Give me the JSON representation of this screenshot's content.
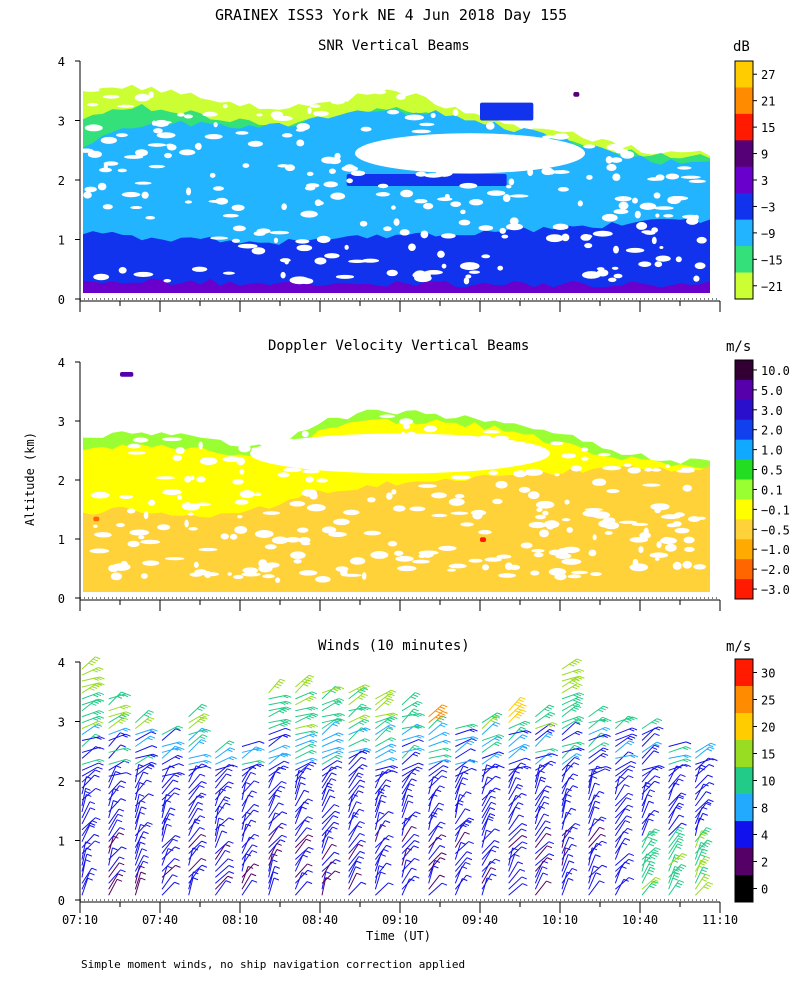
{
  "figure_title": "GRAINEX ISS3 York NE   4 Jun 2018 Day 155",
  "footnote": "Simple moment winds, no ship navigation correction applied",
  "shared_ylabel": "Altitude (km)",
  "shared_xlabel": "Time (UT)",
  "time_ticks": [
    "07:10",
    "07:40",
    "08:10",
    "08:40",
    "09:10",
    "09:40",
    "10:10",
    "10:40",
    "11:10"
  ],
  "altitude_ticks": [
    "0",
    "1",
    "2",
    "3",
    "4"
  ],
  "chart_data": [
    {
      "type": "heatmap",
      "title": "SNR Vertical Beams",
      "units": "dB",
      "xlim": [
        "07:10",
        "11:10"
      ],
      "ylim": [
        0,
        4
      ],
      "colorbar_labels": [
        "27",
        "21",
        "15",
        "9",
        "3",
        "−3",
        "−9",
        "−15",
        "−21"
      ],
      "colorbar_colors": [
        "#ffcc00",
        "#ff8c00",
        "#ff1a00",
        "#550077",
        "#6a00cc",
        "#1133ee",
        "#22b4ff",
        "#33e07a",
        "#ccff33"
      ],
      "layers": [
        {
          "label": "-21",
          "top": [
            3.55,
            3.6,
            3.45,
            3.3,
            3.2,
            3.25,
            3.5,
            3.4,
            3.1,
            2.9,
            2.8,
            2.6,
            2.45,
            2.45
          ]
        },
        {
          "label": "-15",
          "top": [
            3.05,
            3.25,
            3.15,
            3.0,
            2.9,
            3.0,
            3.2,
            3.15,
            2.95,
            2.8,
            2.7,
            2.5,
            2.4,
            2.4
          ]
        },
        {
          "label": "-9",
          "top": [
            2.6,
            2.9,
            2.95,
            2.9,
            2.9,
            3.05,
            3.15,
            3.15,
            3.05,
            2.85,
            2.7,
            2.45,
            2.3,
            2.3
          ]
        },
        {
          "label": "-3",
          "top": [
            1.1,
            1.05,
            1.0,
            1.0,
            0.95,
            1.0,
            1.05,
            1.1,
            1.1,
            1.15,
            1.2,
            1.25,
            1.3,
            1.3
          ]
        },
        {
          "label": "3",
          "top": [
            0.3,
            0.3,
            0.28,
            0.28,
            0.25,
            0.25,
            0.25,
            0.25,
            0.25,
            0.25,
            0.25,
            0.25,
            0.25,
            0.25
          ]
        }
      ],
      "features": [
        {
          "label": "-3",
          "note": "strong layer near 3.0-3.3 km",
          "start": "09:40",
          "end": "10:00"
        },
        {
          "label": "-3",
          "note": "layer near 1.9-2.1 km",
          "start": "08:50",
          "end": "09:50"
        },
        {
          "label": "9",
          "note": "spot near 3.4 km",
          "start": "10:15",
          "end": "10:15"
        }
      ]
    },
    {
      "type": "heatmap",
      "title": "Doppler Velocity Vertical Beams",
      "units": "m/s",
      "xlim": [
        "07:10",
        "11:10"
      ],
      "ylim": [
        0,
        4
      ],
      "colorbar_labels": [
        "10.0",
        "5.0",
        "3.0",
        "2.0",
        "1.0",
        "0.5",
        "0.1",
        "−0.1",
        "−0.5",
        "−1.0",
        "−2.0",
        "−3.0"
      ],
      "colorbar_colors": [
        "#330033",
        "#5500aa",
        "#2a10cc",
        "#1140ee",
        "#11a8ff",
        "#22dd22",
        "#99ff33",
        "#ffff00",
        "#ffd23a",
        "#ffaa00",
        "#ff6600",
        "#ff1a00"
      ],
      "layers": [
        {
          "label": "0.1",
          "top": [
            2.75,
            2.8,
            2.75,
            2.6,
            2.55,
            3.0,
            3.15,
            3.15,
            3.05,
            2.9,
            2.75,
            2.5,
            2.35,
            2.3
          ]
        },
        {
          "label": "-0.1",
          "top": [
            2.55,
            2.6,
            2.55,
            2.45,
            2.4,
            2.85,
            3.0,
            3.0,
            2.95,
            2.8,
            2.6,
            2.4,
            2.25,
            2.2
          ]
        },
        {
          "label": "-0.5",
          "top": [
            1.45,
            1.5,
            1.45,
            1.4,
            1.6,
            1.8,
            1.9,
            1.95,
            2.0,
            2.1,
            2.15,
            2.2,
            2.2,
            2.2
          ]
        }
      ],
      "features": [
        {
          "label": "-2.0",
          "note": "spot near 1.3 km",
          "start": "07:15",
          "end": "07:15"
        },
        {
          "label": "-3.0",
          "note": "spot near 0.95 km",
          "start": "09:40",
          "end": "09:40"
        },
        {
          "label": "5.0",
          "note": "spot near 3.75 km",
          "start": "07:25",
          "end": "07:30"
        }
      ]
    },
    {
      "type": "scatter",
      "title": "Winds (10 minutes)",
      "units": "m/s",
      "subtype": "wind barbs",
      "xlim": [
        "07:10",
        "11:10"
      ],
      "ylim": [
        0,
        4
      ],
      "colorbar_labels": [
        "30",
        "25",
        "20",
        "15",
        "10",
        "8",
        "4",
        "2",
        "0"
      ],
      "colorbar_colors": [
        "#ff1a00",
        "#ff8c00",
        "#ffcc00",
        "#99dd22",
        "#22cc88",
        "#22aaff",
        "#1111ee",
        "#550066",
        "#000000"
      ],
      "profile_times": [
        "07:10",
        "07:20",
        "07:30",
        "07:40",
        "07:50",
        "08:00",
        "08:10",
        "08:20",
        "08:30",
        "08:40",
        "08:50",
        "09:00",
        "09:10",
        "09:20",
        "09:30",
        "09:40",
        "09:50",
        "10:00",
        "10:10",
        "10:20",
        "10:30",
        "10:40",
        "10:50",
        "11:00"
      ],
      "profile_tops_km": [
        3.9,
        3.4,
        3.0,
        2.8,
        3.1,
        2.5,
        2.6,
        3.5,
        3.6,
        3.55,
        3.5,
        3.4,
        3.3,
        3.1,
        2.9,
        3.0,
        3.2,
        3.1,
        3.9,
        3.1,
        3.0,
        2.95,
        2.65,
        2.55
      ],
      "speed_bands": [
        {
          "altitude_km": [
            0.0,
            1.0
          ],
          "speed_ms": 5
        },
        {
          "altitude_km": [
            1.0,
            2.2
          ],
          "speed_ms": 6
        },
        {
          "altitude_km": [
            2.2,
            2.8
          ],
          "speed_ms": 9
        },
        {
          "altitude_km": [
            2.8,
            3.4
          ],
          "speed_ms": 14
        },
        {
          "altitude_km": [
            3.4,
            4.0
          ],
          "speed_ms": 18
        }
      ],
      "notes": [
        "stronger winds 22-28 m/s near 3.0-3.3 km around 09:20 and 10:00",
        "faster low-level winds 12-16 m/s below 1 km after 10:40"
      ]
    }
  ]
}
